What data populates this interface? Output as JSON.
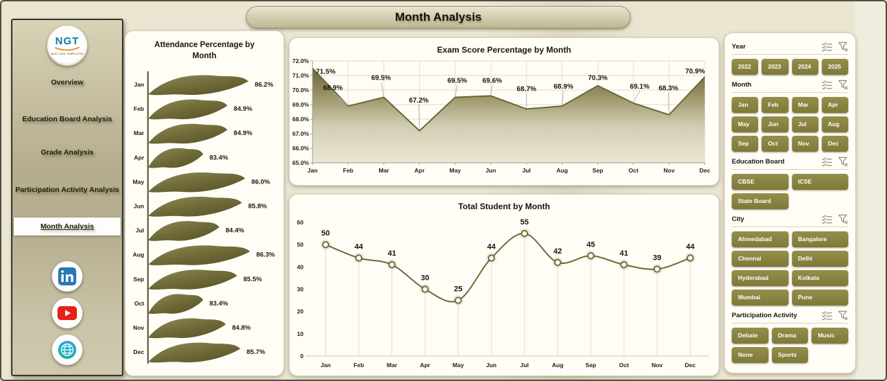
{
  "page_title": "Month Analysis",
  "colors": {
    "accent_olive": "#8b853f",
    "line_olive": "#6b6535",
    "page_bg": "#ebe6d2",
    "panel_bg": "#fffdf6",
    "text_dark": "#1e1d15",
    "linkedin_blue": "#2977b5",
    "youtube_red": "#e62117",
    "globe_teal": "#1f9cd7"
  },
  "sidebar": {
    "logo": {
      "text": "NGT",
      "subtext": "NEXT GEN TEMPLATES"
    },
    "items": [
      {
        "label": "Overview",
        "active": false
      },
      {
        "label": "Education Board Analysis",
        "active": false
      },
      {
        "label": "Grade Analysis",
        "active": false
      },
      {
        "label": "Participation Activity Analysis",
        "active": false
      },
      {
        "label": "Month Analysis",
        "active": true
      }
    ],
    "social": [
      "linkedin",
      "youtube",
      "website"
    ]
  },
  "chart_data": [
    {
      "type": "bar",
      "orientation": "horizontal",
      "title": "Attendance Percentage by Month",
      "categories": [
        "Jan",
        "Feb",
        "Mar",
        "Apr",
        "May",
        "Jun",
        "Jul",
        "Aug",
        "Sep",
        "Oct",
        "Nov",
        "Dec"
      ],
      "values": [
        86.2,
        84.9,
        84.9,
        83.4,
        86.0,
        85.8,
        84.4,
        86.3,
        85.5,
        83.4,
        84.8,
        85.7
      ],
      "value_format": "percent1",
      "xlim": [
        80,
        87
      ],
      "legend": "none"
    },
    {
      "type": "area",
      "title": "Exam Score Percentage by Month",
      "categories": [
        "Jan",
        "Feb",
        "Mar",
        "Apr",
        "May",
        "Jun",
        "Jul",
        "Aug",
        "Sep",
        "Oct",
        "Nov",
        "Dec"
      ],
      "values": [
        71.5,
        68.9,
        69.5,
        67.2,
        69.5,
        69.6,
        68.7,
        68.9,
        70.3,
        69.1,
        68.3,
        70.9
      ],
      "value_format": "percent1",
      "ylim": [
        65,
        72
      ],
      "ytick_step": 1,
      "ytick_labels": [
        "65.0%",
        "66.0%",
        "67.0%",
        "68.0%",
        "69.0%",
        "70.0%",
        "71.0%",
        "72.0%"
      ],
      "grid": true,
      "legend": "none"
    },
    {
      "type": "line",
      "title": "Total Student by Month",
      "categories": [
        "Jan",
        "Feb",
        "Mar",
        "Apr",
        "May",
        "Jun",
        "Jul",
        "Aug",
        "Sep",
        "Oct",
        "Nov",
        "Dec"
      ],
      "values": [
        50,
        44,
        41,
        30,
        25,
        44,
        55,
        42,
        45,
        41,
        39,
        44
      ],
      "ylim": [
        0,
        60
      ],
      "ytick_step": 10,
      "grid": "drop-lines",
      "legend": "none"
    }
  ],
  "slicers": [
    {
      "label": "Year",
      "columns": 4,
      "options": [
        "2022",
        "2023",
        "2024",
        "2025"
      ]
    },
    {
      "label": "Month",
      "columns": 4,
      "options": [
        "Jan",
        "Feb",
        "Mar",
        "Apr",
        "May",
        "Jun",
        "Jul",
        "Aug",
        "Sep",
        "Oct",
        "Nov",
        "Dec"
      ]
    },
    {
      "label": "Education Board",
      "columns": 2,
      "options": [
        "CBSE",
        "ICSE",
        "State Board"
      ]
    },
    {
      "label": "City",
      "columns": 2,
      "options": [
        "Ahmedabad",
        "Bangalore",
        "Chennai",
        "Delhi",
        "Hyderabad",
        "Kolkata",
        "Mumbai",
        "Pune"
      ]
    },
    {
      "label": "Participation Activity",
      "columns": 3,
      "options": [
        "Debate",
        "Drama",
        "Music",
        "None",
        "Sports"
      ]
    }
  ]
}
